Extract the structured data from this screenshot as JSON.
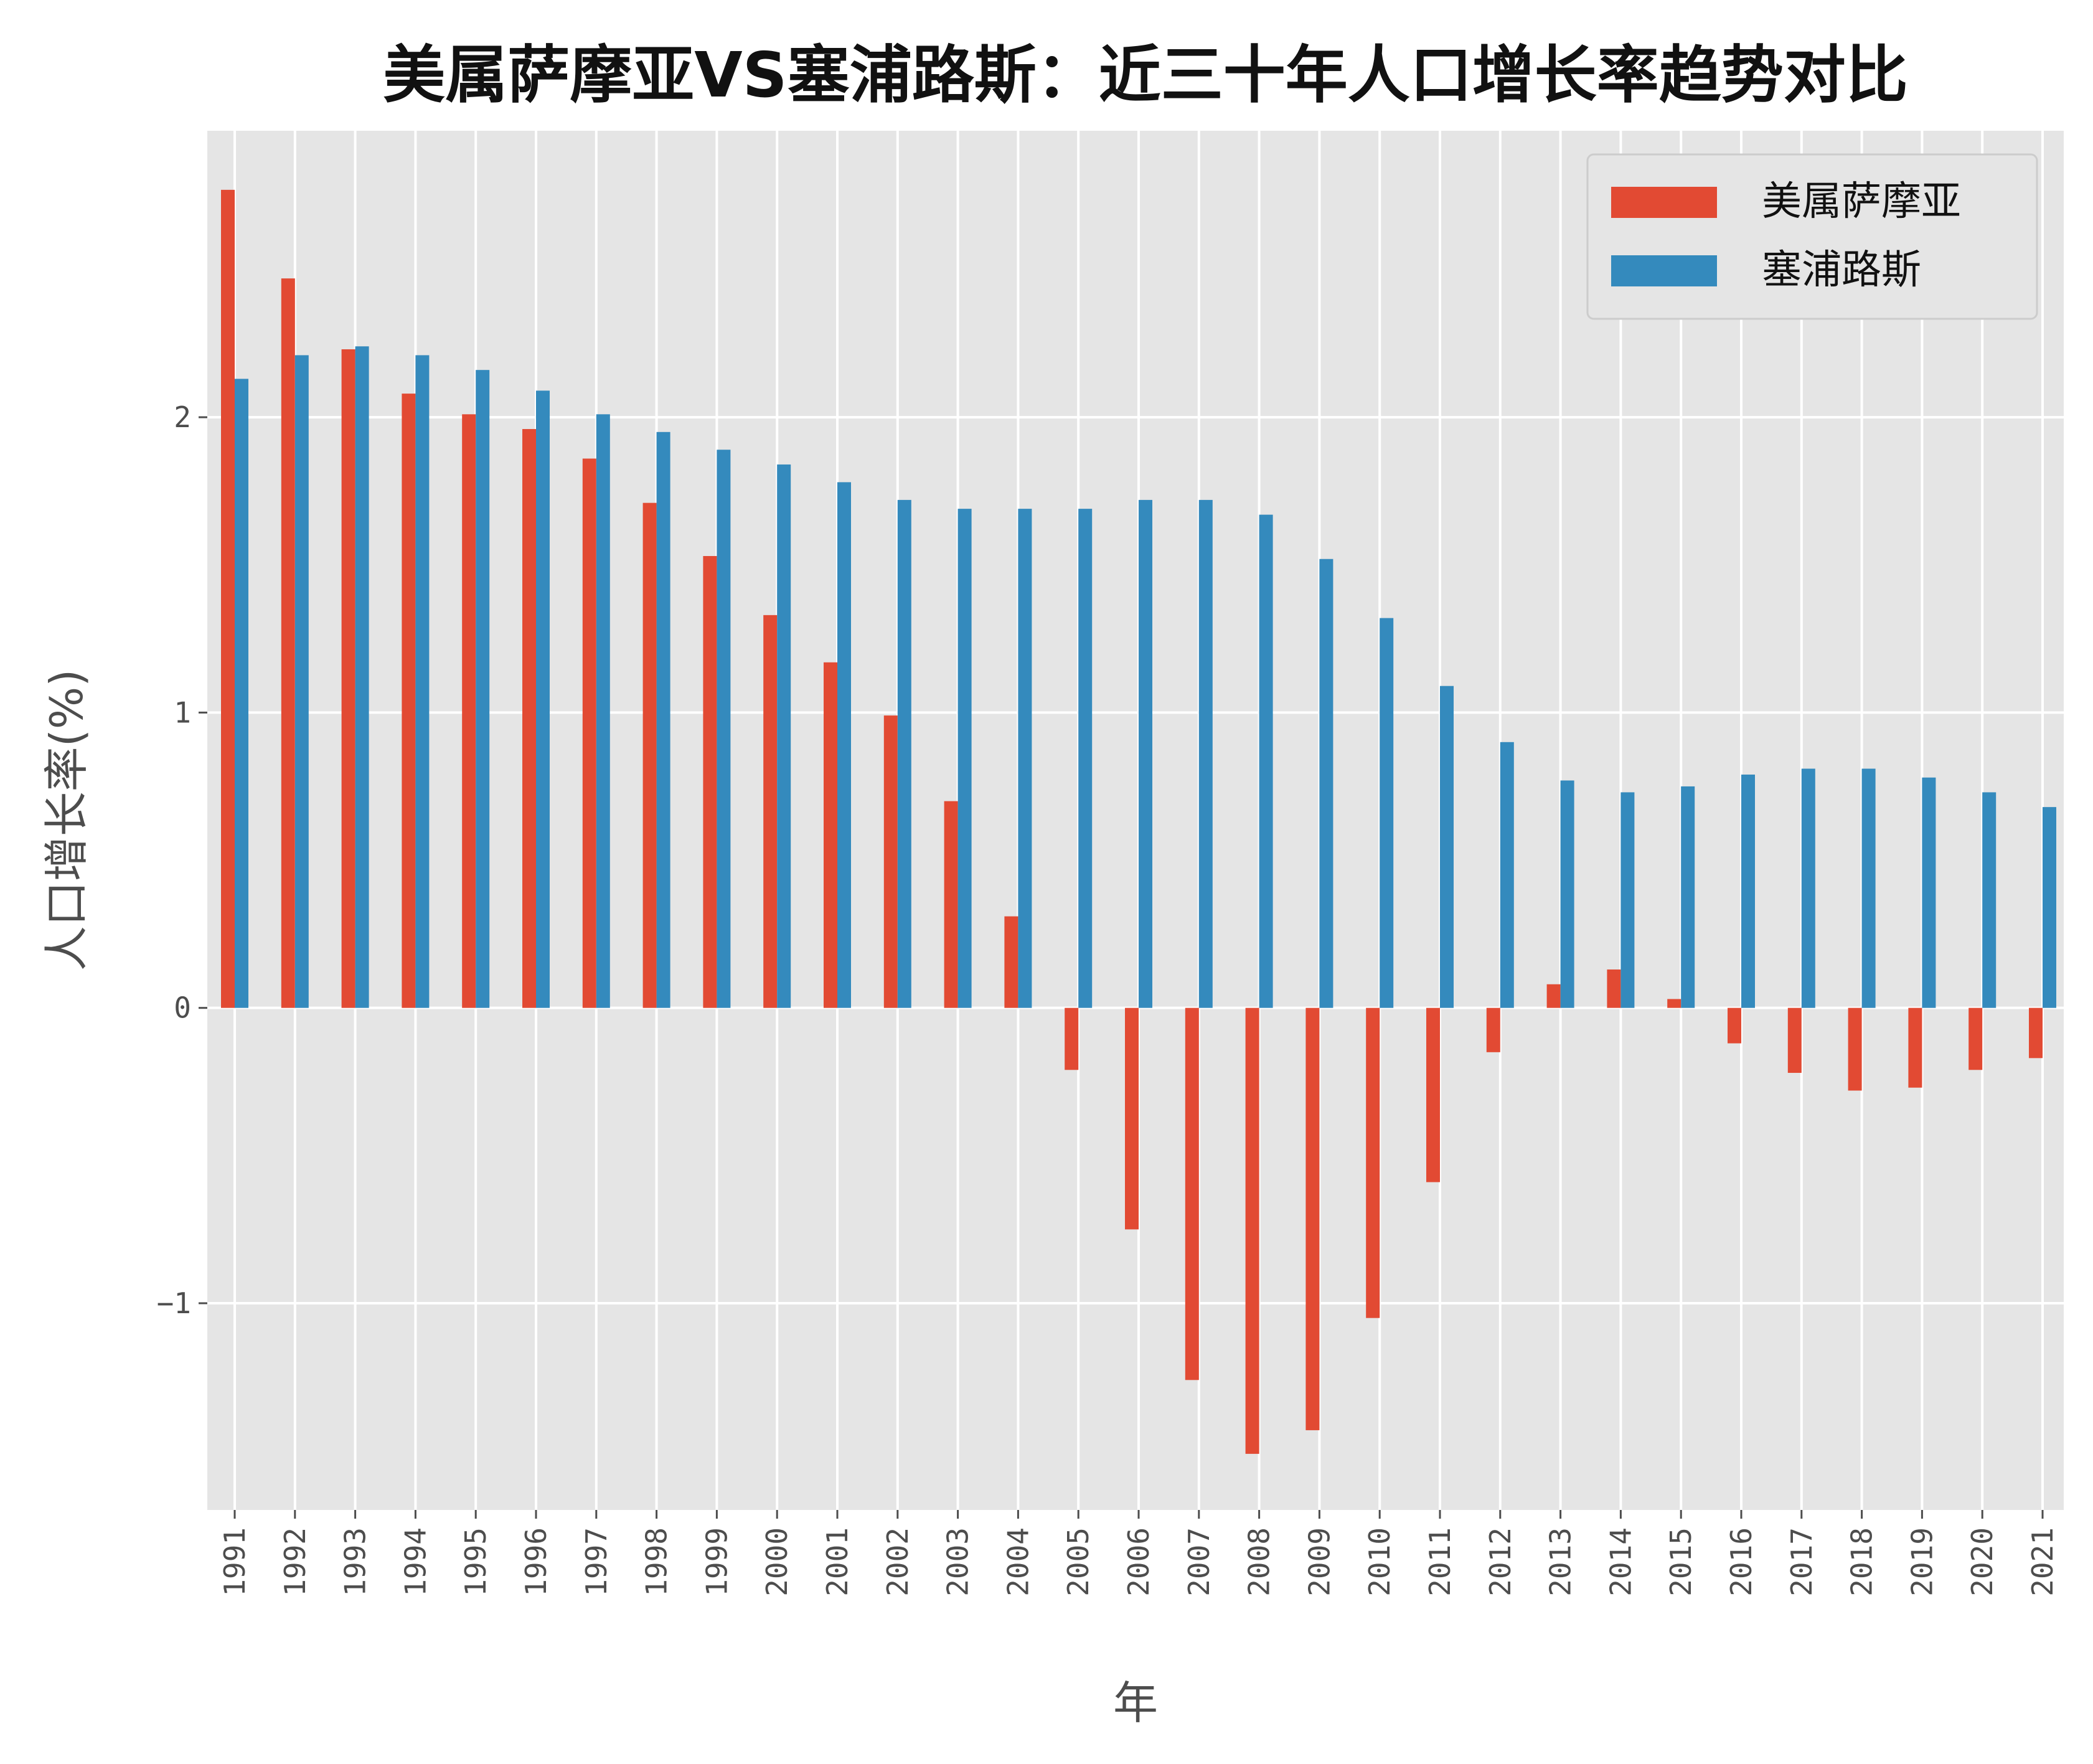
{
  "chart_data": {
    "type": "bar",
    "title": "美属萨摩亚VS塞浦路斯：近三十年人口增长率趋势对比",
    "xlabel": "年",
    "ylabel": "人口增长率(%)",
    "ylim": [
      -1.7,
      2.97
    ],
    "yticks": [
      -1,
      0,
      1,
      2
    ],
    "grid": true,
    "legend_position": "top-right",
    "categories": [
      "1991",
      "1992",
      "1993",
      "1994",
      "1995",
      "1996",
      "1997",
      "1998",
      "1999",
      "2000",
      "2001",
      "2002",
      "2003",
      "2004",
      "2005",
      "2006",
      "2007",
      "2008",
      "2009",
      "2010",
      "2011",
      "2012",
      "2013",
      "2014",
      "2015",
      "2016",
      "2017",
      "2018",
      "2019",
      "2020",
      "2021"
    ],
    "series": [
      {
        "name": "美属萨摩亚",
        "color": "#e24a33",
        "values": [
          2.77,
          2.47,
          2.23,
          2.08,
          2.01,
          1.96,
          1.86,
          1.71,
          1.53,
          1.33,
          1.17,
          0.99,
          0.7,
          0.31,
          -0.21,
          -0.75,
          -1.26,
          -1.51,
          -1.43,
          -1.05,
          -0.59,
          -0.15,
          0.08,
          0.13,
          0.03,
          -0.12,
          -0.22,
          -0.28,
          -0.27,
          -0.21,
          -0.17
        ]
      },
      {
        "name": "塞浦路斯",
        "color": "#348abd",
        "values": [
          2.13,
          2.21,
          2.24,
          2.21,
          2.16,
          2.09,
          2.01,
          1.95,
          1.89,
          1.84,
          1.78,
          1.72,
          1.69,
          1.69,
          1.69,
          1.72,
          1.72,
          1.67,
          1.52,
          1.32,
          1.09,
          0.9,
          0.77,
          0.73,
          0.75,
          0.79,
          0.81,
          0.81,
          0.78,
          0.73,
          0.68
        ]
      }
    ]
  }
}
